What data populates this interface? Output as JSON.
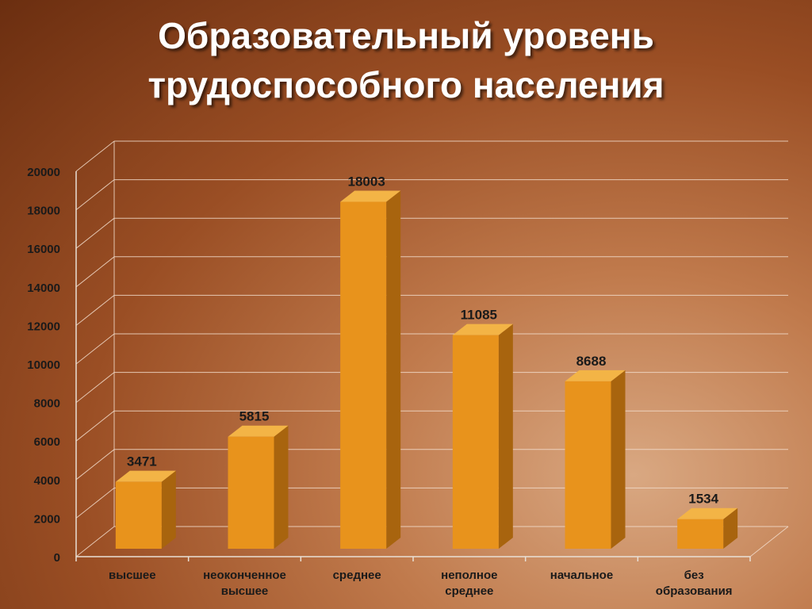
{
  "slide": {
    "title_line1": "Образовательный уровень",
    "title_line2": "трудоспособного населения"
  },
  "chart_data": {
    "type": "bar",
    "title": "Образовательный уровень трудоспособного населения",
    "categories": [
      [
        "высшее"
      ],
      [
        "неоконченное",
        "высшее"
      ],
      [
        "среднее"
      ],
      [
        "неполное",
        "среднее"
      ],
      [
        "начальное"
      ],
      [
        "без",
        "образования"
      ]
    ],
    "values": [
      3471,
      5815,
      18003,
      11085,
      8688,
      1534
    ],
    "ylim": [
      0,
      20000
    ],
    "yticks": [
      0,
      2000,
      4000,
      6000,
      8000,
      10000,
      12000,
      14000,
      16000,
      18000,
      20000
    ],
    "grid": true,
    "legend": "none",
    "style": "3d-column",
    "colors": {
      "bar_front": "#e8931c",
      "bar_side": "#a8640e",
      "bar_top": "#f3b446",
      "grid": "#f2dccb",
      "text": "#1a1a1a"
    }
  }
}
